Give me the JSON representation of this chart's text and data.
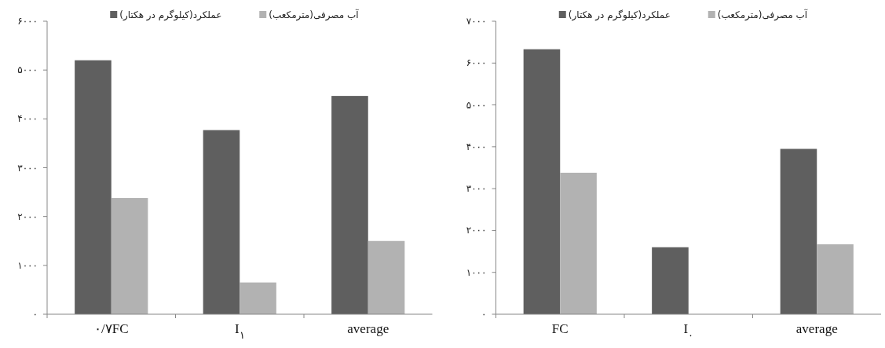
{
  "chart_data": [
    {
      "type": "bar",
      "categories": [
        "۰/۷FC",
        "I$_{۱}$",
        "average"
      ],
      "series": [
        {
          "name": "عملکرد(کیلوگرم در هکتار)",
          "color": "#5f5f5f",
          "values": [
            5200,
            3770,
            4470
          ]
        },
        {
          "name": "آب مصرفی(مترمکعب)",
          "color": "#b2b2b2",
          "values": [
            2380,
            650,
            1500
          ]
        }
      ],
      "ylim": [
        0,
        6000
      ],
      "yticks": [
        {
          "value": 0,
          "label": "۰"
        },
        {
          "value": 1000,
          "label": "۱۰۰۰"
        },
        {
          "value": 2000,
          "label": "۲۰۰۰"
        },
        {
          "value": 3000,
          "label": "۳۰۰۰"
        },
        {
          "value": 4000,
          "label": "۴۰۰۰"
        },
        {
          "value": 5000,
          "label": "۵۰۰۰"
        },
        {
          "value": 6000,
          "label": "۶۰۰۰"
        }
      ],
      "grid": false,
      "legend": "top"
    },
    {
      "type": "bar",
      "categories": [
        "FC",
        "I$_{۰}$",
        "average"
      ],
      "series": [
        {
          "name": "عملکرد(کیلوگرم در هکتار)",
          "color": "#5f5f5f",
          "values": [
            6330,
            1600,
            3950
          ]
        },
        {
          "name": "آب مصرفی(مترمکعب)",
          "color": "#b2b2b2",
          "values": [
            3380,
            null,
            1670
          ]
        }
      ],
      "ylim": [
        0,
        7000
      ],
      "yticks": [
        {
          "value": 0,
          "label": "۰"
        },
        {
          "value": 1000,
          "label": "۱۰۰۰"
        },
        {
          "value": 2000,
          "label": "۲۰۰۰"
        },
        {
          "value": 3000,
          "label": "۳۰۰۰"
        },
        {
          "value": 4000,
          "label": "۴۰۰۰"
        },
        {
          "value": 5000,
          "label": "۵۰۰۰"
        },
        {
          "value": 6000,
          "label": "۶۰۰۰"
        },
        {
          "value": 7000,
          "label": "۷۰۰۰"
        }
      ],
      "grid": false,
      "legend": "top"
    }
  ]
}
